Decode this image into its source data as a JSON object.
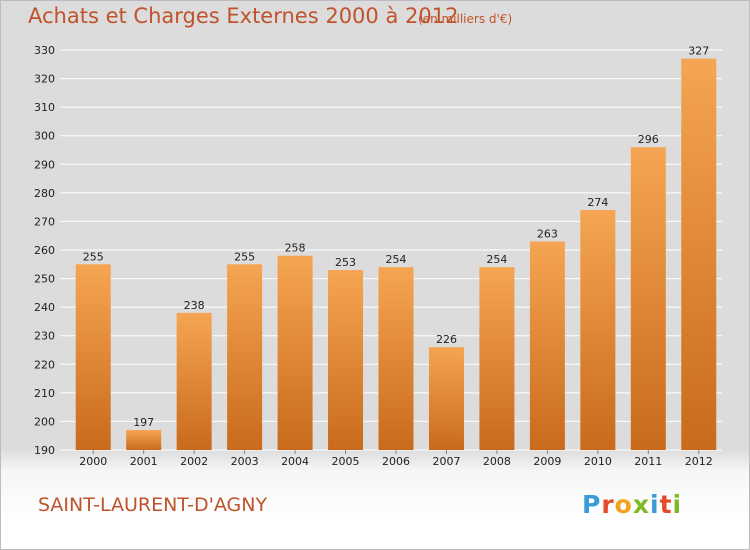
{
  "title": "Achats et Charges Externes 2000 à 2012",
  "subtitle": "(en milliers d'€)",
  "commune": "SAINT-LAURENT-D'AGNY",
  "brand": [
    "P",
    "r",
    "o",
    "x",
    "i",
    "t",
    "i"
  ],
  "colors": {
    "bar_top": "#f5a553",
    "bar_bottom": "#c96a1c",
    "grid": "#ffffff",
    "title": "#c0532b"
  },
  "chart_data": {
    "type": "bar",
    "title": "Achats et Charges Externes 2000 à 2012",
    "subtitle": "(en milliers d'€)",
    "categories": [
      "2000",
      "2001",
      "2002",
      "2003",
      "2004",
      "2005",
      "2006",
      "2007",
      "2008",
      "2009",
      "2010",
      "2011",
      "2012"
    ],
    "values": [
      255,
      197,
      238,
      255,
      258,
      253,
      254,
      226,
      254,
      263,
      274,
      296,
      327
    ],
    "ylim": [
      190,
      330
    ],
    "yticks": [
      190,
      200,
      210,
      220,
      230,
      240,
      250,
      260,
      270,
      280,
      290,
      300,
      310,
      320,
      330
    ],
    "grid": true,
    "legend": "none"
  }
}
